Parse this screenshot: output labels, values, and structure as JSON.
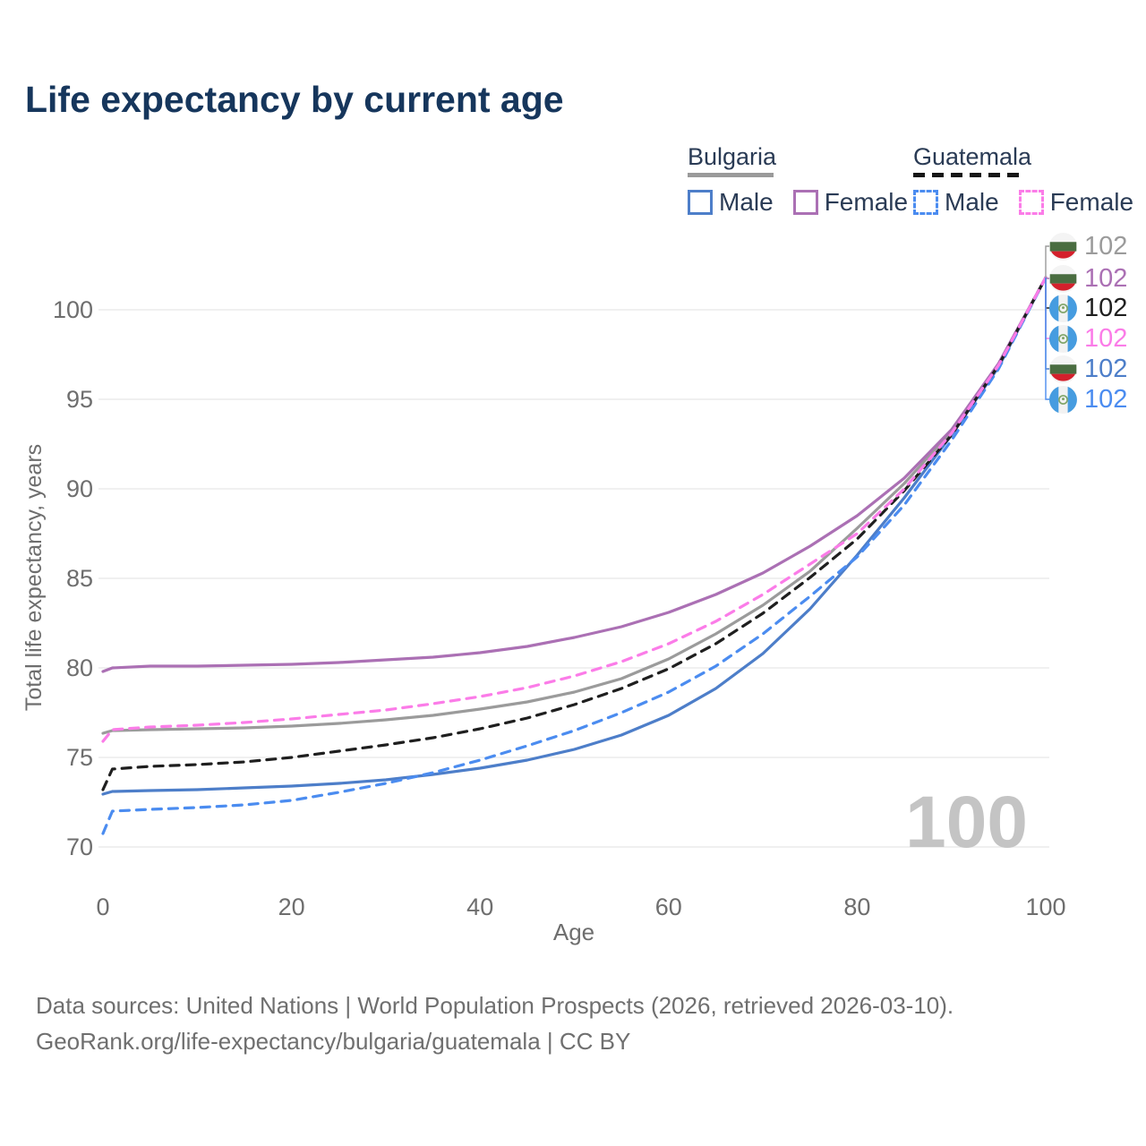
{
  "title": "Life expectancy by current age",
  "legend": {
    "groups": [
      {
        "label": "Bulgaria",
        "line_style": "solid",
        "items": [
          {
            "label": "Male",
            "color": "#4d7ec9"
          },
          {
            "label": "Female",
            "color": "#ab70b4"
          }
        ]
      },
      {
        "label": "Guatemala",
        "line_style": "dashed",
        "items": [
          {
            "label": "Male",
            "color": "#4b8cf0"
          },
          {
            "label": "Female",
            "color": "#fb7ce8"
          }
        ]
      }
    ]
  },
  "chart_data": {
    "type": "line",
    "title": "Life expectancy by current age",
    "xlabel": "Age",
    "ylabel": "Total life expectancy, years",
    "xlim": [
      0,
      100
    ],
    "ylim": [
      70,
      102
    ],
    "x_ticks": [
      0,
      20,
      40,
      60,
      80,
      100
    ],
    "y_ticks": [
      70,
      75,
      80,
      85,
      90,
      95,
      100
    ],
    "grid": "horizontal",
    "legend_position": "top-right",
    "x": [
      0,
      1,
      5,
      10,
      15,
      20,
      25,
      30,
      35,
      40,
      45,
      50,
      55,
      60,
      65,
      70,
      75,
      80,
      85,
      90,
      95,
      100
    ],
    "series": [
      {
        "name": "Bulgaria Male",
        "country": "Bulgaria",
        "sex": "male",
        "color": "#4d7ec9",
        "dashed": false,
        "values": [
          72.95,
          73.1,
          73.15,
          73.2,
          73.3,
          73.4,
          73.55,
          73.75,
          74.05,
          74.4,
          74.85,
          75.45,
          76.25,
          77.35,
          78.85,
          80.8,
          83.3,
          86.3,
          89.5,
          93.0,
          96.8,
          101.8
        ],
        "end_label": "102"
      },
      {
        "name": "Bulgaria Total",
        "country": "Bulgaria",
        "sex": "both",
        "color": "#9b9b9b",
        "dashed": false,
        "values": [
          76.35,
          76.5,
          76.55,
          76.6,
          76.65,
          76.75,
          76.9,
          77.1,
          77.35,
          77.7,
          78.1,
          78.65,
          79.4,
          80.5,
          81.9,
          83.5,
          85.4,
          87.8,
          90.3,
          93.2,
          96.9,
          101.8
        ],
        "end_label": "102"
      },
      {
        "name": "Bulgaria Female",
        "country": "Bulgaria",
        "sex": "female",
        "color": "#ab70b4",
        "dashed": false,
        "values": [
          79.8,
          80.0,
          80.1,
          80.1,
          80.15,
          80.2,
          80.3,
          80.45,
          80.6,
          80.85,
          81.2,
          81.7,
          82.3,
          83.1,
          84.1,
          85.3,
          86.8,
          88.5,
          90.6,
          93.3,
          97.0,
          101.8
        ],
        "end_label": "102"
      },
      {
        "name": "Guatemala Male",
        "country": "Guatemala",
        "sex": "male",
        "color": "#4b8cf0",
        "dashed": true,
        "values": [
          70.75,
          72.0,
          72.1,
          72.2,
          72.35,
          72.6,
          73.05,
          73.55,
          74.15,
          74.85,
          75.65,
          76.5,
          77.5,
          78.65,
          80.1,
          81.9,
          84.0,
          86.2,
          89.1,
          92.7,
          96.7,
          101.8
        ],
        "end_label": "102"
      },
      {
        "name": "Guatemala Total",
        "country": "Guatemala",
        "sex": "both",
        "color": "#1f1f1f",
        "dashed": true,
        "values": [
          73.2,
          74.35,
          74.5,
          74.6,
          74.75,
          75.0,
          75.35,
          75.7,
          76.1,
          76.6,
          77.2,
          77.95,
          78.85,
          79.95,
          81.35,
          83.05,
          85.05,
          87.2,
          89.9,
          93.0,
          96.9,
          101.8
        ],
        "end_label": "102"
      },
      {
        "name": "Guatemala Female",
        "country": "Guatemala",
        "sex": "female",
        "color": "#fb7ce8",
        "dashed": true,
        "values": [
          75.9,
          76.55,
          76.7,
          76.8,
          76.95,
          77.15,
          77.4,
          77.65,
          78.0,
          78.4,
          78.9,
          79.55,
          80.35,
          81.35,
          82.6,
          84.1,
          85.8,
          87.5,
          90.0,
          93.1,
          96.9,
          101.8
        ],
        "end_label": "102"
      }
    ],
    "end_labels": [
      {
        "flag": "bulgaria",
        "value": "102",
        "color": "#9b9b9b",
        "series": "Bulgaria Total"
      },
      {
        "flag": "bulgaria",
        "value": "102",
        "color": "#ab70b4",
        "series": "Bulgaria Female"
      },
      {
        "flag": "guatemala",
        "value": "102",
        "color": "#1f1f1f",
        "series": "Guatemala Total"
      },
      {
        "flag": "guatemala",
        "value": "102",
        "color": "#fb7ce8",
        "series": "Guatemala Female"
      },
      {
        "flag": "bulgaria",
        "value": "102",
        "color": "#4d7ec9",
        "series": "Bulgaria Male"
      },
      {
        "flag": "guatemala",
        "value": "102",
        "color": "#4b8cf0",
        "series": "Guatemala Male"
      }
    ],
    "age_watermark": "100"
  },
  "footer": {
    "line1": "Data sources: United Nations | World Population Prospects (2026, retrieved 2026-03-10).",
    "line2": "GeoRank.org/life-expectancy/bulgaria/guatemala | CC BY"
  },
  "colors": {
    "title": "#16365c",
    "tick_text": "#6e6e6e",
    "grid": "#ececec",
    "watermark": "#c4c4c4",
    "footer": "#6f6f6f"
  }
}
